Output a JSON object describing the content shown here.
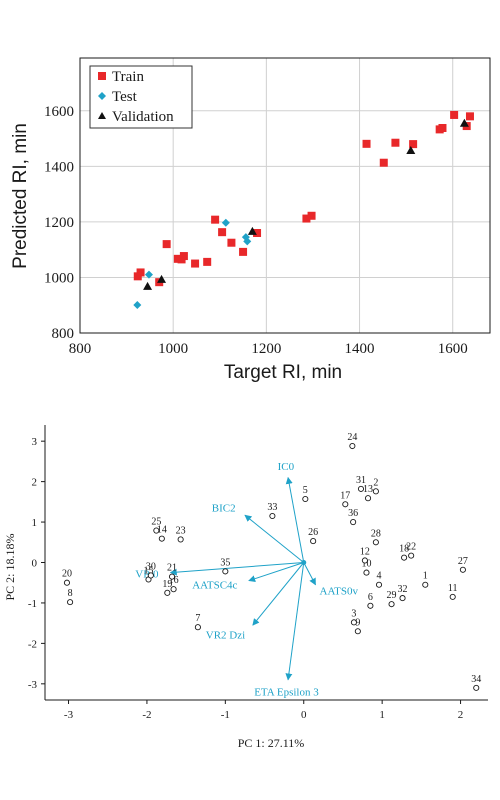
{
  "chart_data": [
    {
      "type": "scatter",
      "title": "",
      "xlabel": "Target RI, min",
      "ylabel": "Predicted RI, min",
      "xlim": [
        800,
        1680
      ],
      "ylim": [
        800,
        1790
      ],
      "xticks": [
        800,
        1000,
        1200,
        1400,
        1600
      ],
      "yticks": [
        800,
        1000,
        1200,
        1400,
        1600
      ],
      "grid": true,
      "legend": "top-left",
      "series": [
        {
          "name": "Train",
          "marker": "square",
          "color": "#e8282a",
          "points": [
            [
              924,
              1004
            ],
            [
              930,
              1018
            ],
            [
              970,
              983
            ],
            [
              986,
              1120
            ],
            [
              1010,
              1067
            ],
            [
              1018,
              1065
            ],
            [
              1023,
              1077
            ],
            [
              1047,
              1050
            ],
            [
              1073,
              1056
            ],
            [
              1090,
              1208
            ],
            [
              1105,
              1163
            ],
            [
              1125,
              1125
            ],
            [
              1150,
              1092
            ],
            [
              1180,
              1160
            ],
            [
              1286,
              1212
            ],
            [
              1297,
              1222
            ],
            [
              1415,
              1481
            ],
            [
              1452,
              1413
            ],
            [
              1477,
              1485
            ],
            [
              1515,
              1480
            ],
            [
              1572,
              1533
            ],
            [
              1578,
              1538
            ],
            [
              1603,
              1585
            ],
            [
              1630,
              1545
            ],
            [
              1637,
              1580
            ]
          ]
        },
        {
          "name": "Test",
          "marker": "diamond",
          "color": "#1fa2c8",
          "points": [
            [
              923,
              901
            ],
            [
              948,
              1010
            ],
            [
              1113,
              1197
            ],
            [
              1156,
              1145
            ],
            [
              1159,
              1130
            ]
          ]
        },
        {
          "name": "Validation",
          "marker": "triangle",
          "color": "#111111",
          "points": [
            [
              945,
              968
            ],
            [
              975,
              993
            ],
            [
              1170,
              1166
            ],
            [
              1510,
              1457
            ],
            [
              1625,
              1555
            ]
          ]
        }
      ]
    },
    {
      "type": "scatter",
      "title": "",
      "xlabel": "PC 1: 27.11%",
      "ylabel": "PC 2: 18.18%",
      "xlim": [
        -3.3,
        2.35
      ],
      "ylim": [
        -3.4,
        3.4
      ],
      "xticks": [
        -3,
        -2,
        -1,
        0,
        1,
        2
      ],
      "yticks": [
        -3,
        -2,
        -1,
        0,
        1,
        2,
        3
      ],
      "grid": false,
      "points": [
        {
          "label": "1",
          "x": 1.55,
          "y": -0.55
        },
        {
          "label": "2",
          "x": 0.92,
          "y": 1.76
        },
        {
          "label": "3",
          "x": 0.64,
          "y": -1.48
        },
        {
          "label": "4",
          "x": 0.96,
          "y": -0.55
        },
        {
          "label": "5",
          "x": 0.02,
          "y": 1.57
        },
        {
          "label": "6",
          "x": 0.85,
          "y": -1.07
        },
        {
          "label": "7",
          "x": -1.35,
          "y": -1.6
        },
        {
          "label": "8",
          "x": -2.98,
          "y": -0.98
        },
        {
          "label": "9",
          "x": 0.69,
          "y": -1.7
        },
        {
          "label": "10",
          "x": 0.8,
          "y": -0.25
        },
        {
          "label": "11",
          "x": 1.9,
          "y": -0.85
        },
        {
          "label": "12",
          "x": 0.78,
          "y": 0.05
        },
        {
          "label": "13",
          "x": 0.82,
          "y": 1.59
        },
        {
          "label": "14",
          "x": -1.81,
          "y": 0.59
        },
        {
          "label": "15",
          "x": -1.98,
          "y": -0.42
        },
        {
          "label": "16",
          "x": -1.66,
          "y": -0.66
        },
        {
          "label": "17",
          "x": 0.53,
          "y": 1.44
        },
        {
          "label": "18",
          "x": 1.28,
          "y": 0.12
        },
        {
          "label": "19",
          "x": -1.74,
          "y": -0.75
        },
        {
          "label": "20",
          "x": -3.02,
          "y": -0.5
        },
        {
          "label": "21",
          "x": -1.68,
          "y": -0.35
        },
        {
          "label": "22",
          "x": 1.37,
          "y": 0.17
        },
        {
          "label": "23",
          "x": -1.57,
          "y": 0.57
        },
        {
          "label": "24",
          "x": 0.62,
          "y": 2.88
        },
        {
          "label": "25",
          "x": -1.88,
          "y": 0.79
        },
        {
          "label": "26",
          "x": 0.12,
          "y": 0.53
        },
        {
          "label": "27",
          "x": 2.03,
          "y": -0.18
        },
        {
          "label": "28",
          "x": 0.92,
          "y": 0.5
        },
        {
          "label": "29",
          "x": 1.12,
          "y": -1.03
        },
        {
          "label": "30",
          "x": -1.95,
          "y": -0.32
        },
        {
          "label": "31",
          "x": 0.73,
          "y": 1.82
        },
        {
          "label": "32",
          "x": 1.26,
          "y": -0.88
        },
        {
          "label": "33",
          "x": -0.4,
          "y": 1.15
        },
        {
          "label": "34",
          "x": 2.2,
          "y": -3.1
        },
        {
          "label": "35",
          "x": -1.0,
          "y": -0.22
        },
        {
          "label": "36",
          "x": 0.63,
          "y": 1.0
        }
      ],
      "loadings": [
        {
          "label": "IC0",
          "x": -0.2,
          "y": 2.1
        },
        {
          "label": "BIC2",
          "x": -0.75,
          "y": 1.17
        },
        {
          "label": "VP-0",
          "x": -1.7,
          "y": -0.25
        },
        {
          "label": "AATSC4c",
          "x": -0.7,
          "y": -0.45
        },
        {
          "label": "VR2 Dzi",
          "x": -0.65,
          "y": -1.55
        },
        {
          "label": "AATS0v",
          "x": 0.15,
          "y": -0.55
        },
        {
          "label": "ETA Epsilon 3",
          "x": -0.2,
          "y": -2.9
        }
      ]
    }
  ]
}
